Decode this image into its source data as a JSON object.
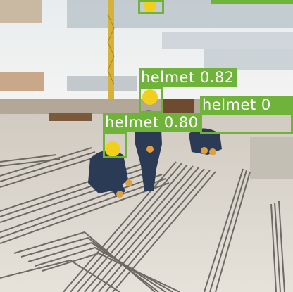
{
  "detections": [
    {
      "label": "helmet 0.82",
      "color": "#6fb33a"
    },
    {
      "label": "helmet 0",
      "color": "#6fb33a"
    },
    {
      "label": "helmet 0.80",
      "color": "#6fb33a"
    }
  ]
}
